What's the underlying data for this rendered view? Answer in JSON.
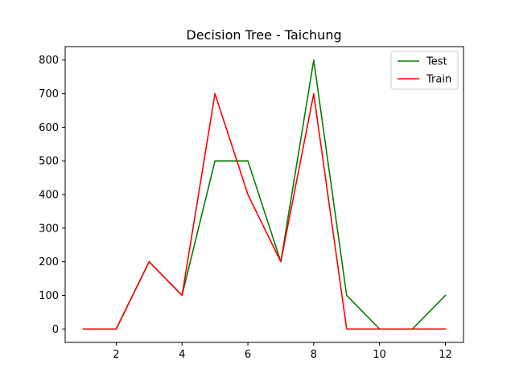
{
  "chart_data": {
    "type": "line",
    "title": "Decision Tree - Taichung",
    "xlabel": "",
    "ylabel": "",
    "x": [
      1,
      2,
      3,
      4,
      5,
      6,
      7,
      8,
      9,
      10,
      11,
      12
    ],
    "xlim": [
      0.45,
      12.55
    ],
    "ylim": [
      -40,
      840
    ],
    "xticks": [
      2,
      4,
      6,
      8,
      10,
      12
    ],
    "yticks": [
      0,
      100,
      200,
      300,
      400,
      500,
      600,
      700,
      800
    ],
    "grid": false,
    "legend_position": "top-right",
    "series": [
      {
        "name": "Test",
        "color": "#008000",
        "values": [
          0,
          0,
          200,
          100,
          500,
          500,
          200,
          800,
          100,
          0,
          0,
          100
        ]
      },
      {
        "name": "Train",
        "color": "#ff0000",
        "values": [
          0,
          0,
          200,
          100,
          700,
          400,
          200,
          700,
          0,
          0,
          0,
          0
        ]
      }
    ]
  }
}
